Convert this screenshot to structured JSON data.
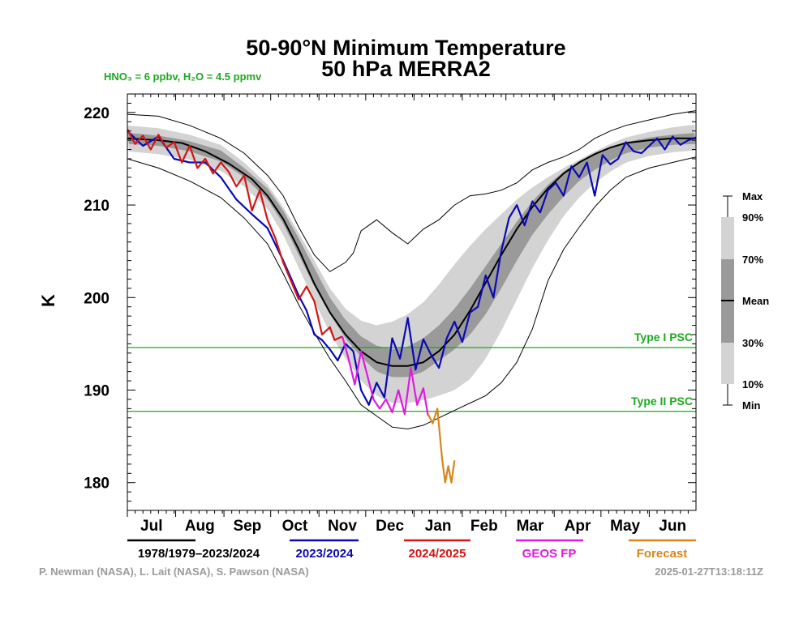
{
  "title_line1": "50-90°N Minimum Temperature",
  "title_line2": "50 hPa   MERRA2",
  "subtitle": "HNO₃ = 6 ppbv, H₂O = 4.5 ppmv",
  "credit_left": "P. Newman (NASA), L. Lait (NASA), S. Pawson (NASA)",
  "credit_right": "2025-01-27T13:18:11Z",
  "colors": {
    "climatology": "#000000",
    "season_2023_2024": "#0a0ab4",
    "season_2024_2025": "#d41414",
    "geos_fp": "#e01ae0",
    "forecast": "#d8861a",
    "psc": "#1fa81f",
    "band_outer": "#d3d3d3",
    "band_inner": "#9a9a9a"
  },
  "chart_data": {
    "type": "line",
    "title": "50-90°N Minimum Temperature 50 hPa MERRA2",
    "xlabel": "",
    "ylabel": "K",
    "xlim": [
      0,
      365
    ],
    "ylim": [
      177,
      222
    ],
    "yticks": [
      180,
      190,
      200,
      210,
      220
    ],
    "x_unit": "days since Jul 1",
    "months": [
      "Jul",
      "Aug",
      "Sep",
      "Oct",
      "Nov",
      "Dec",
      "Jan",
      "Feb",
      "Mar",
      "Apr",
      "May",
      "Jun"
    ],
    "reference_lines": [
      {
        "label": "Type I PSC",
        "value": 194.6
      },
      {
        "label": "Type II PSC",
        "value": 187.7
      }
    ],
    "percentile_key": [
      "Max",
      "90%",
      "70%",
      "Mean",
      "30%",
      "10%",
      "Min"
    ],
    "legend": [
      "1978/1979–2023/2024",
      "2023/2024",
      "2024/2025",
      "GEOS FP",
      "Forecast"
    ],
    "series": [
      {
        "name": "Mean 1978/1979–2023/2024",
        "x": [
          0,
          20,
          35,
          50,
          65,
          80,
          90,
          100,
          110,
          120,
          130,
          140,
          150,
          160,
          170,
          180,
          190,
          200,
          210,
          220,
          230,
          240,
          250,
          260,
          270,
          280,
          290,
          300,
          310,
          320,
          335,
          350,
          365
        ],
        "values": [
          217.2,
          217.0,
          216.7,
          215.8,
          214.5,
          212.8,
          211.0,
          208.5,
          205.2,
          201.5,
          198.4,
          196.0,
          194.2,
          193.0,
          192.6,
          192.6,
          193.0,
          194.2,
          196.0,
          198.6,
          201.6,
          204.6,
          207.4,
          209.8,
          211.8,
          213.4,
          214.6,
          215.5,
          216.2,
          216.7,
          217.0,
          217.2,
          217.2
        ]
      },
      {
        "name": "Max",
        "x": [
          0,
          20,
          40,
          60,
          75,
          90,
          100,
          110,
          120,
          130,
          140,
          145,
          150,
          160,
          170,
          180,
          190,
          200,
          210,
          220,
          230,
          240,
          250,
          260,
          270,
          280,
          290,
          300,
          310,
          320,
          335,
          350,
          365
        ],
        "values": [
          219.8,
          219.6,
          218.6,
          217.2,
          215.6,
          213.2,
          211.0,
          207.6,
          204.6,
          202.8,
          203.8,
          204.8,
          207.2,
          208.4,
          207.0,
          205.8,
          207.4,
          208.4,
          210.0,
          211.0,
          211.2,
          211.6,
          212.4,
          213.8,
          214.6,
          215.2,
          216.0,
          217.2,
          218.0,
          218.6,
          219.2,
          219.8,
          220.2
        ]
      },
      {
        "name": "90%",
        "x": [
          0,
          20,
          40,
          60,
          75,
          90,
          100,
          110,
          120,
          130,
          140,
          150,
          160,
          170,
          180,
          190,
          200,
          210,
          220,
          230,
          240,
          250,
          260,
          270,
          280,
          290,
          300,
          310,
          320,
          335,
          350,
          365
        ],
        "values": [
          218.6,
          218.3,
          217.6,
          216.5,
          214.6,
          212.2,
          209.8,
          207.0,
          204.0,
          201.0,
          198.8,
          197.5,
          197.0,
          197.4,
          198.2,
          199.5,
          201.4,
          203.6,
          205.6,
          207.4,
          209.0,
          210.6,
          211.9,
          213.0,
          214.0,
          214.9,
          215.8,
          216.6,
          217.3,
          217.9,
          218.4,
          218.7
        ]
      },
      {
        "name": "70%",
        "x": [
          0,
          20,
          40,
          60,
          75,
          90,
          100,
          110,
          120,
          130,
          140,
          150,
          160,
          170,
          180,
          190,
          200,
          210,
          220,
          230,
          240,
          250,
          260,
          270,
          280,
          290,
          300,
          310,
          320,
          335,
          350,
          365
        ],
        "values": [
          217.8,
          217.5,
          216.9,
          215.9,
          214.0,
          211.8,
          209.4,
          206.4,
          203.2,
          200.0,
          197.6,
          195.8,
          194.8,
          194.4,
          194.7,
          195.6,
          197.0,
          198.8,
          201.0,
          203.4,
          205.8,
          208.2,
          210.4,
          212.2,
          213.6,
          214.7,
          215.6,
          216.3,
          216.8,
          217.3,
          217.6,
          217.8
        ]
      },
      {
        "name": "30%",
        "x": [
          0,
          20,
          40,
          60,
          75,
          90,
          100,
          110,
          120,
          130,
          140,
          150,
          160,
          170,
          180,
          190,
          200,
          210,
          220,
          230,
          240,
          250,
          260,
          270,
          280,
          290,
          300,
          310,
          320,
          335,
          350,
          365
        ],
        "values": [
          216.6,
          216.4,
          215.8,
          214.7,
          213.0,
          210.6,
          208.0,
          204.6,
          201.2,
          198.2,
          195.6,
          193.6,
          192.0,
          191.4,
          191.4,
          192.0,
          193.2,
          194.4,
          196.0,
          198.2,
          201.0,
          204.0,
          206.8,
          209.0,
          210.9,
          212.6,
          213.8,
          214.8,
          215.6,
          216.2,
          216.5,
          216.6
        ]
      },
      {
        "name": "10%",
        "x": [
          0,
          20,
          40,
          60,
          75,
          90,
          100,
          110,
          120,
          130,
          140,
          150,
          160,
          170,
          180,
          190,
          200,
          210,
          220,
          230,
          240,
          250,
          260,
          270,
          280,
          290,
          300,
          310,
          320,
          335,
          350,
          365
        ],
        "values": [
          215.8,
          215.5,
          214.9,
          213.7,
          212.0,
          209.6,
          206.8,
          203.2,
          199.6,
          196.2,
          193.4,
          191.0,
          189.4,
          188.6,
          188.6,
          188.9,
          189.4,
          190.0,
          191.2,
          193.4,
          196.4,
          199.8,
          203.2,
          206.2,
          208.8,
          210.8,
          212.4,
          213.6,
          214.6,
          215.3,
          215.7,
          215.9
        ]
      },
      {
        "name": "Min",
        "x": [
          0,
          20,
          40,
          60,
          75,
          90,
          100,
          110,
          120,
          130,
          140,
          150,
          160,
          170,
          180,
          190,
          200,
          210,
          220,
          230,
          240,
          250,
          260,
          270,
          280,
          290,
          300,
          310,
          320,
          335,
          350,
          365
        ],
        "values": [
          215.0,
          214.0,
          212.6,
          210.8,
          208.6,
          205.8,
          202.6,
          199.2,
          196.2,
          193.4,
          191.0,
          188.4,
          187.2,
          186.0,
          185.8,
          186.2,
          187.0,
          187.8,
          188.6,
          189.4,
          190.8,
          193.0,
          196.6,
          201.8,
          205.2,
          207.6,
          209.8,
          211.6,
          213.0,
          214.0,
          214.6,
          215.2
        ]
      },
      {
        "name": "2023/2024",
        "x": [
          0,
          10,
          20,
          30,
          40,
          50,
          60,
          70,
          80,
          90,
          100,
          110,
          115,
          120,
          125,
          130,
          135,
          140,
          145,
          150,
          155,
          160,
          165,
          170,
          175,
          180,
          185,
          190,
          195,
          200,
          205,
          210,
          215,
          220,
          225,
          230,
          235,
          240,
          245,
          250,
          255,
          260,
          265,
          270,
          275,
          280,
          285,
          290,
          295,
          300,
          305,
          310,
          315,
          320,
          325,
          330,
          335,
          340,
          345,
          350,
          355,
          360,
          365
        ],
        "values": [
          218.0,
          216.4,
          217.4,
          215.0,
          214.6,
          214.6,
          213.0,
          210.6,
          209.0,
          207.5,
          204.0,
          200.2,
          198.6,
          196.0,
          195.4,
          194.4,
          193.2,
          195.0,
          194.2,
          190.0,
          188.4,
          190.8,
          189.2,
          195.6,
          193.4,
          197.8,
          192.2,
          195.5,
          193.8,
          192.4,
          195.6,
          197.4,
          195.2,
          198.4,
          199.0,
          202.4,
          200.0,
          205.0,
          208.6,
          210.0,
          207.8,
          210.4,
          209.2,
          211.6,
          212.4,
          211.0,
          214.2,
          213.0,
          214.6,
          211.0,
          215.4,
          214.4,
          215.0,
          216.8,
          215.8,
          215.6,
          216.4,
          217.2,
          216.0,
          217.4,
          216.5,
          217.0,
          217.3
        ]
      },
      {
        "name": "2024/2025",
        "x": [
          0,
          5,
          10,
          15,
          20,
          25,
          30,
          35,
          40,
          45,
          50,
          55,
          60,
          65,
          70,
          75,
          80,
          85,
          90,
          95,
          100,
          105,
          110,
          115,
          120,
          125,
          130,
          133,
          138
        ],
        "values": [
          218.2,
          216.6,
          217.5,
          216.0,
          217.6,
          216.2,
          216.8,
          214.6,
          216.4,
          214.0,
          215.0,
          213.4,
          214.6,
          213.6,
          212.0,
          213.2,
          209.4,
          211.6,
          208.4,
          206.4,
          203.8,
          201.8,
          199.8,
          201.2,
          199.6,
          196.0,
          196.8,
          195.4,
          195.8
        ]
      },
      {
        "name": "GEOS FP",
        "x": [
          138,
          142,
          146,
          150,
          154,
          158,
          162,
          166,
          170,
          174,
          178,
          182,
          186,
          190,
          193
        ],
        "values": [
          195.8,
          193.4,
          190.6,
          194.2,
          191.6,
          189.0,
          188.0,
          189.0,
          187.6,
          190.0,
          187.4,
          192.4,
          188.4,
          190.2,
          187.2
        ]
      },
      {
        "name": "Forecast",
        "x": [
          193,
          196,
          199,
          202,
          204,
          206,
          208,
          210
        ],
        "values": [
          187.4,
          186.4,
          188.0,
          182.6,
          180.0,
          181.8,
          180.0,
          182.4
        ]
      }
    ]
  }
}
